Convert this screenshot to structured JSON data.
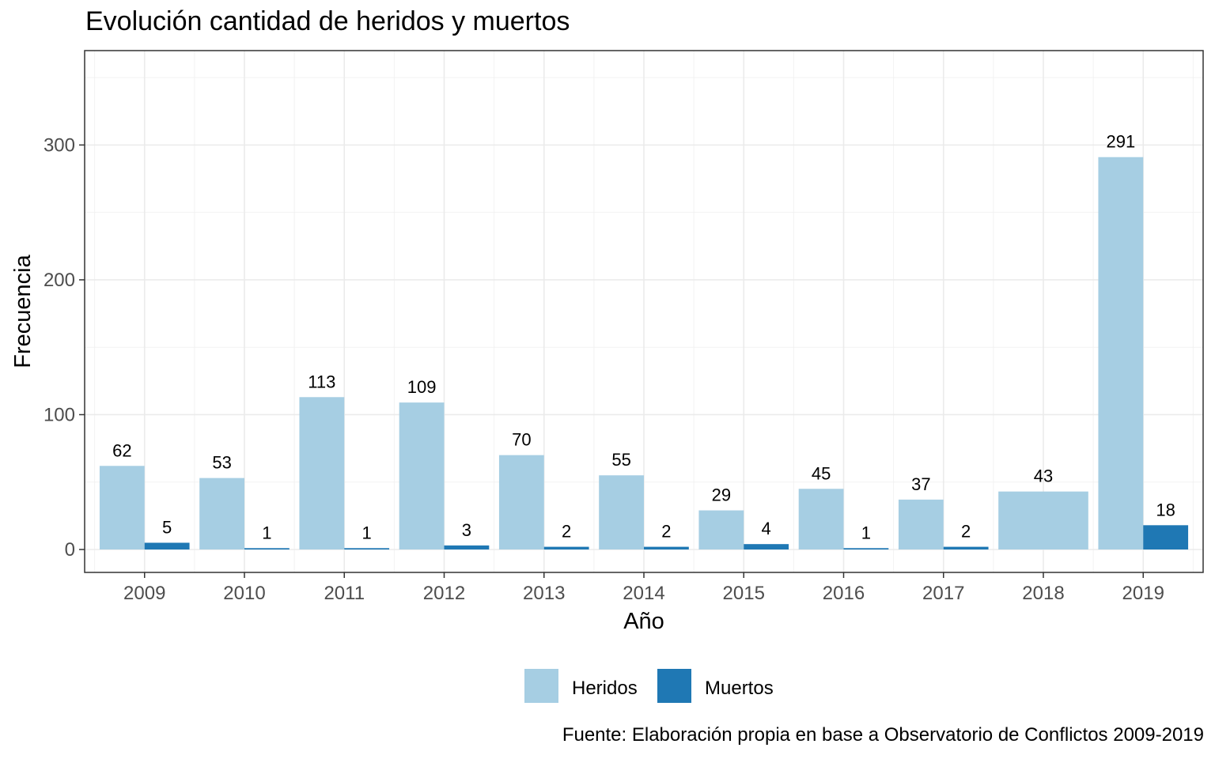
{
  "chart_data": {
    "type": "bar",
    "title": "Evolución cantidad de heridos y muertos",
    "caption": "Fuente: Elaboración propia en base a Observatorio de Conflictos 2009-2019",
    "xlabel": "Año",
    "ylabel": "Frecuencia",
    "categories": [
      "2009",
      "2010",
      "2011",
      "2012",
      "2013",
      "2014",
      "2015",
      "2016",
      "2017",
      "2018",
      "2019"
    ],
    "series": [
      {
        "name": "Heridos",
        "color": "#a6cee3",
        "values": [
          62,
          53,
          113,
          109,
          70,
          55,
          29,
          45,
          37,
          43,
          291
        ]
      },
      {
        "name": "Muertos",
        "color": "#1f78b4",
        "values": [
          5,
          1,
          1,
          3,
          2,
          2,
          4,
          1,
          2,
          null,
          18
        ]
      }
    ],
    "yticks": [
      0,
      100,
      200,
      300
    ],
    "ylim": [
      -17,
      370
    ],
    "grid": true,
    "legend_position": "bottom",
    "panel_border": true
  }
}
